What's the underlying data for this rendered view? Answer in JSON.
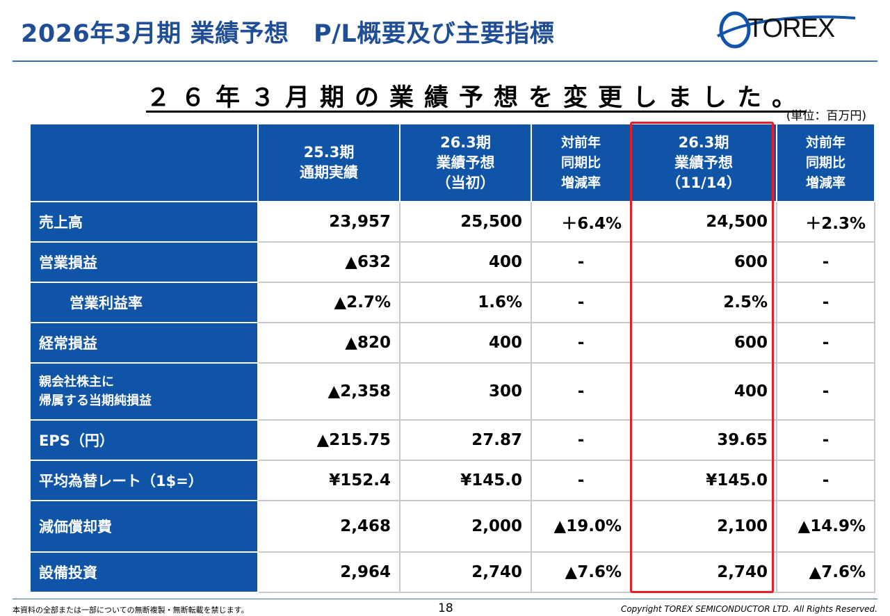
{
  "page": {
    "title": "2026年3月期 業績予想　P/L概要及び主要指標",
    "headline": "２６年３月期の業績予想を変更しました。",
    "unit": "(単位：百万円)",
    "logo_text": "TOREX",
    "footer_note": "本資料の全部または一部についての無断複製・無断転載を禁じます。",
    "page_number": "18",
    "copyright": "Copyright TOREX SEMICONDUCTOR LTD.  All Rights Reserved."
  },
  "brand": {
    "primary": "#1054a8",
    "title": "#1f4e96",
    "highlight": "#e51e28"
  },
  "table": {
    "headers": [
      {
        "line1": "25.3期",
        "line2": "通期実績",
        "line3": ""
      },
      {
        "line1": "26.3期",
        "line2": "業績予想",
        "line3": "（当初）"
      },
      {
        "line1": "対前年",
        "line2": "同期比",
        "line3": "増減率"
      },
      {
        "line1": "26.3期",
        "line2": "業績予想",
        "line3": "（11/14）"
      },
      {
        "line1": "対前年",
        "line2": "同期比",
        "line3": "増減率"
      }
    ],
    "rows": [
      {
        "label": "売上高",
        "values": [
          "23,957",
          "25,500",
          "＋6.4%",
          "24,500",
          "＋2.3%"
        ]
      },
      {
        "label": "営業損益",
        "values": [
          "▲632",
          "400",
          "-",
          "600",
          "-"
        ]
      },
      {
        "label": "営業利益率",
        "values": [
          "▲2.7%",
          "1.6%",
          "-",
          "2.5%",
          "-"
        ]
      },
      {
        "label": "経常損益",
        "values": [
          "▲820",
          "400",
          "-",
          "600",
          "-"
        ]
      },
      {
        "label": "親会社株主に",
        "label2": "帰属する当期純損益",
        "values": [
          "▲2,358",
          "300",
          "-",
          "400",
          "-"
        ]
      },
      {
        "label": "EPS（円）",
        "values": [
          "▲215.75",
          "27.87",
          "-",
          "39.65",
          "-"
        ]
      },
      {
        "label": "平均為替レート（1$=）",
        "values": [
          "¥152.4",
          "¥145.0",
          "-",
          "¥145.0",
          "-"
        ]
      },
      {
        "label": "減価償却費",
        "values": [
          "2,468",
          "2,000",
          "▲19.0%",
          "2,100",
          "▲14.9%"
        ]
      },
      {
        "label": "設備投資",
        "values": [
          "2,964",
          "2,740",
          "▲7.6%",
          "2,740",
          "▲7.6%"
        ]
      }
    ]
  }
}
